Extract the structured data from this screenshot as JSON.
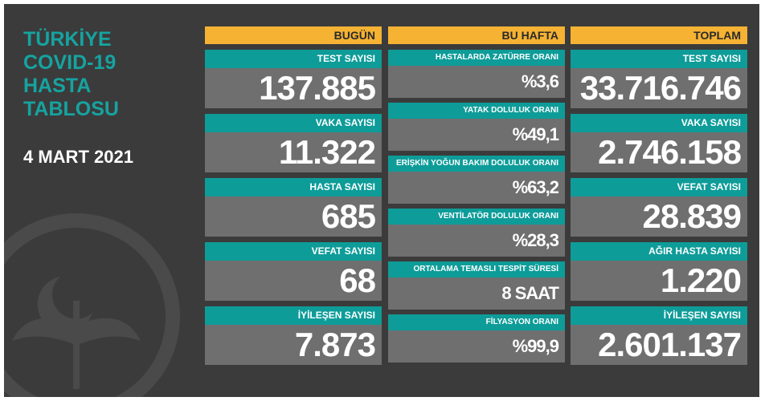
{
  "header": {
    "title_lines": [
      "TÜRKİYE",
      "COVID-19",
      "HASTA",
      "TABLOSU"
    ],
    "date": "4 MART 2021"
  },
  "columns": [
    {
      "heading": "BUGÜN",
      "cells": [
        [
          "TEST SAYISI",
          "137.885"
        ],
        [
          "VAKA SAYISI",
          "11.322"
        ],
        [
          "HASTA SAYISI",
          "685"
        ],
        [
          "VEFAT SAYISI",
          "68"
        ],
        [
          "İYİLEŞEN SAYISI",
          "7.873"
        ]
      ]
    },
    {
      "heading": "BU HAFTA",
      "cells": [
        [
          "HASTALARDA ZATÜRRE ORANI",
          "%3,6"
        ],
        [
          "YATAK DOLULUK ORANI",
          "%49,1"
        ],
        [
          "ERİŞKİN YOĞUN BAKIM DOLULUK ORANI",
          "%63,2"
        ],
        [
          "VENTİLATÖR DOLULUK ORANI",
          "%28,3"
        ],
        [
          "ORTALAMA TEMASLI TESPİT SÜRESİ",
          "8 SAAT"
        ],
        [
          "FİLYASYON ORANI",
          "%99,9"
        ]
      ]
    },
    {
      "heading": "TOPLAM",
      "cells": [
        [
          "TEST SAYISI",
          "33.716.746"
        ],
        [
          "VAKA SAYISI",
          "2.746.158"
        ],
        [
          "VEFAT SAYISI",
          "28.839"
        ],
        [
          "AĞIR HASTA SAYISI",
          "1.220"
        ],
        [
          "İYİLEŞEN SAYISI",
          "2.601.137"
        ]
      ]
    }
  ]
}
